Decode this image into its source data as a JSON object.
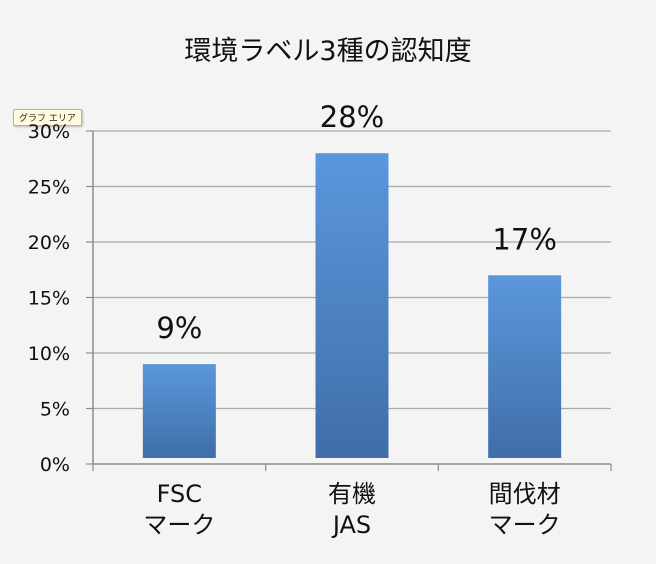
{
  "tooltip": "グラフ エリア",
  "chart_data": {
    "type": "bar",
    "title": "環境ラベル3種の認知度",
    "categories": [
      [
        "FSC",
        "マーク"
      ],
      [
        "有機",
        "JAS"
      ],
      [
        "間伐材",
        "マーク"
      ]
    ],
    "values": [
      9,
      28,
      17
    ],
    "data_labels": [
      "9%",
      "28%",
      "17%"
    ],
    "yticks": [
      "0%",
      "5%",
      "10%",
      "15%",
      "20%",
      "25%",
      "30%"
    ],
    "ylim": [
      0,
      30
    ],
    "xlabel": "",
    "ylabel": "",
    "grid": true,
    "colors": {
      "bar_top": "#5b97dc",
      "bar_bottom": "#3f6ea9",
      "grid": "#a9a9a9",
      "axis": "#8c8c8c"
    }
  }
}
